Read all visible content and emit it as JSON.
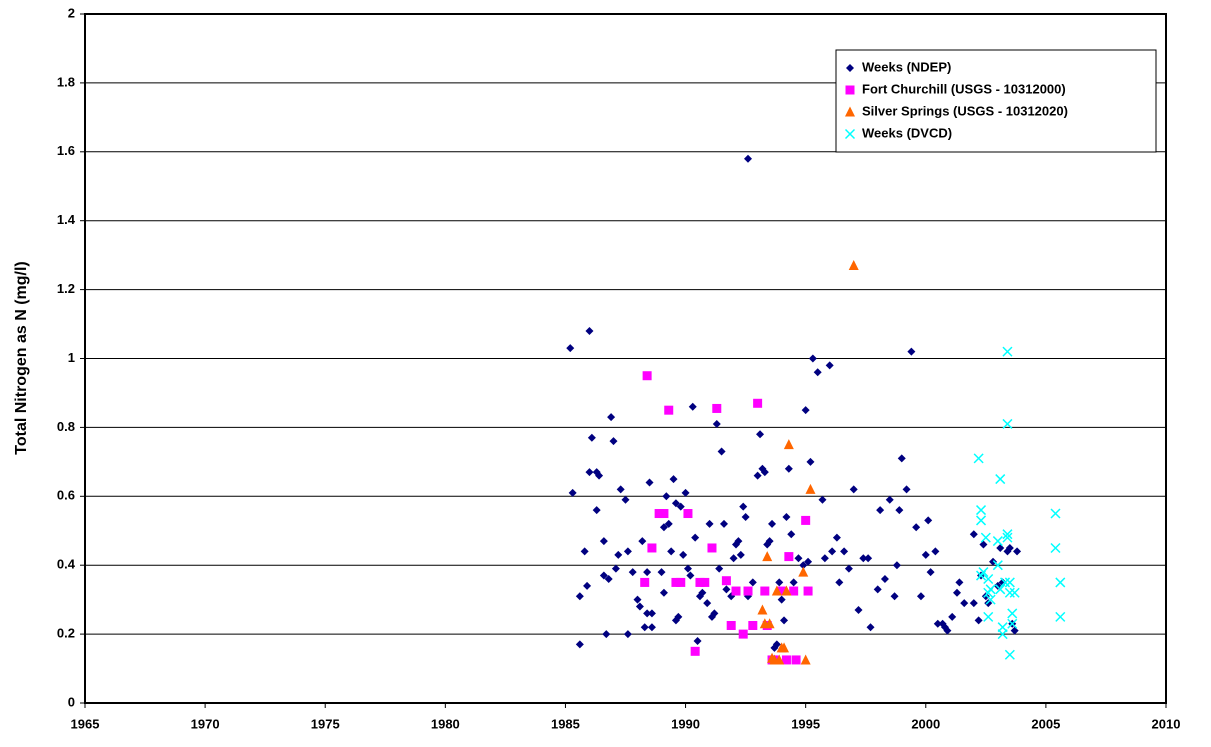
{
  "chart_data": {
    "type": "scatter",
    "y_label": "Total Nitrogen as N (mg/l)",
    "xlim": [
      1965,
      2010
    ],
    "xticks": [
      1965,
      1970,
      1975,
      1980,
      1985,
      1990,
      1995,
      2000,
      2005,
      2010
    ],
    "ylim": [
      0,
      2
    ],
    "yticks": [
      0,
      0.2,
      0.4,
      0.6,
      0.8,
      1,
      1.2,
      1.4,
      1.6,
      1.8,
      2
    ],
    "grid": true,
    "legend": "upper right",
    "series": [
      {
        "name": "Weeks (NDEP)",
        "color": "#000080",
        "marker": "diamond",
        "x": [
          1985.2,
          1985.3,
          1985.6,
          1985.6,
          1985.8,
          1985.9,
          1986,
          1986,
          1986.1,
          1986.3,
          1986.3,
          1986.4,
          1986.6,
          1986.6,
          1986.7,
          1986.8,
          1986.9,
          1987,
          1987.1,
          1987.2,
          1987.3,
          1987.5,
          1987.6,
          1987.6,
          1987.8,
          1988,
          1988.1,
          1988.2,
          1988.3,
          1988.4,
          1988.4,
          1988.5,
          1988.6,
          1988.6,
          1989,
          1989.1,
          1989.1,
          1989.2,
          1989.3,
          1989.4,
          1989.5,
          1989.6,
          1989.6,
          1989.7,
          1989.8,
          1989.9,
          1990,
          1990.1,
          1990.2,
          1990.3,
          1990.4,
          1990.5,
          1990.6,
          1990.7,
          1990.9,
          1991,
          1991.1,
          1991.2,
          1991.3,
          1991.4,
          1991.5,
          1991.6,
          1991.7,
          1991.9,
          1992,
          1992.1,
          1992.2,
          1992.3,
          1992.4,
          1992.5,
          1992.6,
          1992.6,
          1992.8,
          1993,
          1993.1,
          1993.2,
          1993.3,
          1993.4,
          1993.5,
          1993.6,
          1993.7,
          1993.8,
          1993.9,
          1994,
          1994.1,
          1994.2,
          1994.3,
          1994.4,
          1994.5,
          1994.7,
          1994.9,
          1995,
          1995.1,
          1995.2,
          1995.3,
          1995.5,
          1995.7,
          1995.8,
          1996,
          1996.1,
          1996.3,
          1996.4,
          1996.6,
          1996.8,
          1997,
          1997.2,
          1997.4,
          1997.6,
          1997.7,
          1998,
          1998.1,
          1998.3,
          1998.5,
          1998.7,
          1998.8,
          1998.9,
          1999,
          1999.2,
          1999.4,
          1999.6,
          1999.8,
          2000,
          2000.1,
          2000.2,
          2000.4,
          2000.5,
          2000.7,
          2000.8,
          2000.9,
          2001.1,
          2001.3,
          2001.4,
          2001.6,
          2002,
          2002,
          2002.2,
          2002.3,
          2002.4,
          2002.5,
          2002.6,
          2002.8,
          2003,
          2003.1,
          2003.2,
          2003.4,
          2003.5,
          2003.6,
          2003.7,
          2003.8
        ],
        "values": [
          1.03,
          0.61,
          0.17,
          0.31,
          0.44,
          0.34,
          0.67,
          1.08,
          0.77,
          0.67,
          0.56,
          0.66,
          0.37,
          0.47,
          0.2,
          0.36,
          0.83,
          0.76,
          0.39,
          0.43,
          0.62,
          0.59,
          0.44,
          0.2,
          0.38,
          0.3,
          0.28,
          0.47,
          0.22,
          0.26,
          0.38,
          0.64,
          0.26,
          0.22,
          0.38,
          0.32,
          0.51,
          0.6,
          0.52,
          0.44,
          0.65,
          0.58,
          0.24,
          0.25,
          0.57,
          0.43,
          0.61,
          0.39,
          0.37,
          0.86,
          0.48,
          0.18,
          0.31,
          0.32,
          0.29,
          0.52,
          0.25,
          0.26,
          0.81,
          0.39,
          0.73,
          0.52,
          0.33,
          0.31,
          0.42,
          0.46,
          0.47,
          0.43,
          0.57,
          0.54,
          0.31,
          1.58,
          0.35,
          0.66,
          0.78,
          0.68,
          0.67,
          0.46,
          0.47,
          0.52,
          0.16,
          0.17,
          0.35,
          0.3,
          0.24,
          0.54,
          0.68,
          0.49,
          0.35,
          0.42,
          0.4,
          0.85,
          0.41,
          0.7,
          1,
          0.96,
          0.59,
          0.42,
          0.98,
          0.44,
          0.48,
          0.35,
          0.44,
          0.39,
          0.62,
          0.27,
          0.42,
          0.42,
          0.22,
          0.33,
          0.56,
          0.36,
          0.59,
          0.31,
          0.4,
          0.56,
          0.71,
          0.62,
          1.02,
          0.51,
          0.31,
          0.43,
          0.53,
          0.38,
          0.44,
          0.23,
          0.23,
          0.22,
          0.21,
          0.25,
          0.32,
          0.35,
          0.29,
          0.49,
          0.29,
          0.24,
          0.37,
          0.46,
          0.31,
          0.29,
          0.41,
          0.34,
          0.45,
          0.35,
          0.44,
          0.45,
          0.23,
          0.21,
          0.44
        ]
      },
      {
        "name": "Fort Churchill (USGS - 10312000)",
        "color": "#ff00ff",
        "marker": "square",
        "x": [
          1988.3,
          1988.4,
          1988.6,
          1988.9,
          1989.1,
          1989.3,
          1989.6,
          1989.8,
          1990.1,
          1990.4,
          1990.6,
          1990.8,
          1991.1,
          1991.3,
          1991.7,
          1991.9,
          1992.1,
          1992.4,
          1992.6,
          1992.8,
          1993,
          1993.3,
          1993.4,
          1993.6,
          1993.7,
          1994,
          1994.2,
          1994.3,
          1994.5,
          1994.6,
          1995,
          1995.1
        ],
        "values": [
          0.35,
          0.95,
          0.45,
          0.55,
          0.55,
          0.85,
          0.35,
          0.35,
          0.55,
          0.15,
          0.35,
          0.35,
          0.45,
          0.855,
          0.355,
          0.225,
          0.325,
          0.2,
          0.325,
          0.225,
          0.87,
          0.325,
          0.225,
          0.125,
          0.125,
          0.325,
          0.125,
          0.425,
          0.325,
          0.125,
          0.53,
          0.325
        ]
      },
      {
        "name": "Silver Springs (USGS - 10312020)",
        "color": "#ff6600",
        "marker": "triangle",
        "x": [
          1993.2,
          1993.3,
          1993.4,
          1993.5,
          1993.6,
          1993.7,
          1993.8,
          1993.9,
          1994,
          1994.1,
          1994.2,
          1994.3,
          1994.9,
          1995,
          1995.2,
          1997
        ],
        "values": [
          0.27,
          0.23,
          0.425,
          0.23,
          0.13,
          0.125,
          0.325,
          0.125,
          0.16,
          0.16,
          0.325,
          0.75,
          0.38,
          0.125,
          0.62,
          1.27
        ]
      },
      {
        "name": "Weeks (DVCD)",
        "color": "#00ffff",
        "marker": "x",
        "x": [
          2002.2,
          2002.3,
          2002.3,
          2002.3,
          2002.4,
          2002.5,
          2002.6,
          2002.6,
          2002.6,
          2002.7,
          2002.7,
          2003,
          2003,
          2003.1,
          2003.1,
          2003.2,
          2003.2,
          2003.3,
          2003.4,
          2003.4,
          2003.4,
          2003.4,
          2003.5,
          2003.5,
          2003.5,
          2003.6,
          2003.6,
          2003.7,
          2005.4,
          2005.4,
          2005.6,
          2005.6
        ],
        "values": [
          0.71,
          0.56,
          0.53,
          0.37,
          0.38,
          0.48,
          0.36,
          0.32,
          0.25,
          0.33,
          0.3,
          0.47,
          0.4,
          0.65,
          0.33,
          0.22,
          0.2,
          0.35,
          1.02,
          0.81,
          0.49,
          0.48,
          0.35,
          0.32,
          0.14,
          0.26,
          0.23,
          0.32,
          0.55,
          0.45,
          0.35,
          0.25
        ]
      }
    ]
  }
}
